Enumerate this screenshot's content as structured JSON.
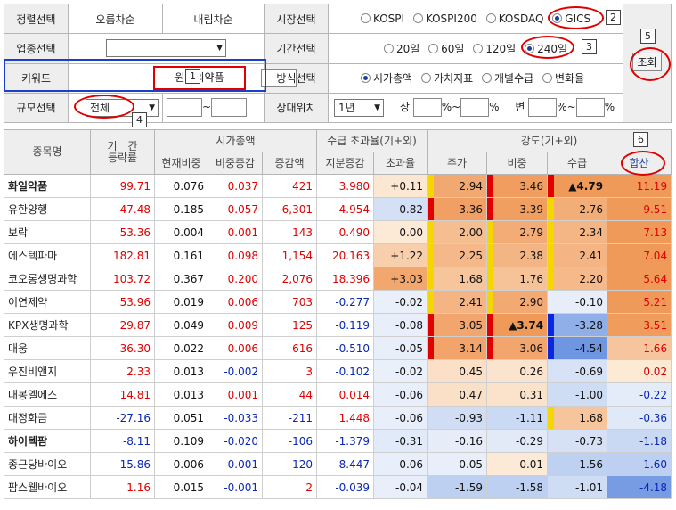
{
  "controls": {
    "sort_label": "정렬선택",
    "sort_asc": "오름차순",
    "sort_desc": "내림차순",
    "market_label": "시장선택",
    "market_options": [
      "KOSPI",
      "KOSPI200",
      "KOSDAQ",
      "GICS"
    ],
    "sector_label": "업종선택",
    "sector_value": "",
    "period_label": "기간선택",
    "period_options": [
      "20일",
      "60일",
      "120일",
      "240일"
    ],
    "keyword_label": "키워드",
    "keyword_value": "원료의약품",
    "method_label": "방식선택",
    "method_options": [
      "시가총액",
      "가치지표",
      "개별수급",
      "변화율"
    ],
    "scale_label": "규모선택",
    "scale_value": "전체",
    "tilde": "~",
    "relpos_label": "상대위치",
    "relpos_value": "1년",
    "up_label": "상",
    "pct1": "%~",
    "pct2": "%",
    "change_label": "변",
    "search_button": "조회"
  },
  "annotations": [
    "1",
    "2",
    "3",
    "4",
    "5",
    "6"
  ],
  "table": {
    "headers": {
      "name": "종목명",
      "period": "기　간\n등락률",
      "mcap": "시가총액",
      "mcap_cols": [
        "현재비중",
        "비중증감",
        "증감액"
      ],
      "supply": "수급 초과율(기+외)",
      "supply_cols": [
        "지분증감",
        "초과율"
      ],
      "strength": "강도(기+외)",
      "strength_cols": [
        "주가",
        "비중",
        "수급",
        "합산"
      ]
    },
    "rows": [
      {
        "name": "화일약품",
        "bold": true,
        "period": "99.71",
        "w": "0.076",
        "wchg": "0.037",
        "amt": "421",
        "stake": "3.980",
        "exc": "+0.11",
        "price": "2.94",
        "weight": "3.46",
        "supply": "▲4.79",
        "sum": "11.19"
      },
      {
        "name": "유한양행",
        "bold": false,
        "period": "47.48",
        "w": "0.185",
        "wchg": "0.057",
        "amt": "6,301",
        "stake": "4.954",
        "exc": "-0.82",
        "price": "3.36",
        "weight": "3.39",
        "supply": "2.76",
        "sum": "9.51"
      },
      {
        "name": "보락",
        "bold": false,
        "period": "53.36",
        "w": "0.004",
        "wchg": "0.001",
        "amt": "143",
        "stake": "0.490",
        "exc": "0.00",
        "price": "2.00",
        "weight": "2.79",
        "supply": "2.34",
        "sum": "7.13"
      },
      {
        "name": "에스텍파마",
        "bold": false,
        "period": "182.81",
        "w": "0.161",
        "wchg": "0.098",
        "amt": "1,154",
        "stake": "20.163",
        "exc": "+1.22",
        "price": "2.25",
        "weight": "2.38",
        "supply": "2.41",
        "sum": "7.04"
      },
      {
        "name": "코오롱생명과학",
        "bold": false,
        "period": "103.72",
        "w": "0.367",
        "wchg": "0.200",
        "amt": "2,076",
        "stake": "18.396",
        "exc": "+3.03",
        "price": "1.68",
        "weight": "1.76",
        "supply": "2.20",
        "sum": "5.64"
      },
      {
        "name": "이연제약",
        "bold": false,
        "period": "53.96",
        "w": "0.019",
        "wchg": "0.006",
        "amt": "703",
        "stake": "-0.277",
        "exc": "-0.02",
        "price": "2.41",
        "weight": "2.90",
        "supply": "-0.10",
        "sum": "5.21"
      },
      {
        "name": "KPX생명과학",
        "bold": false,
        "period": "29.87",
        "w": "0.049",
        "wchg": "0.009",
        "amt": "125",
        "stake": "-0.119",
        "exc": "-0.08",
        "price": "3.05",
        "weight": "▲3.74",
        "supply": "-3.28",
        "sum": "3.51"
      },
      {
        "name": "대웅",
        "bold": false,
        "period": "36.30",
        "w": "0.022",
        "wchg": "0.006",
        "amt": "616",
        "stake": "-0.510",
        "exc": "-0.05",
        "price": "3.14",
        "weight": "3.06",
        "supply": "-4.54",
        "sum": "1.66"
      },
      {
        "name": "우진비앤지",
        "bold": false,
        "period": "2.33",
        "w": "0.013",
        "wchg": "-0.002",
        "amt": "3",
        "stake": "-0.102",
        "exc": "-0.02",
        "price": "0.45",
        "weight": "0.26",
        "supply": "-0.69",
        "sum": "0.02"
      },
      {
        "name": "대봉엘에스",
        "bold": false,
        "period": "14.81",
        "w": "0.013",
        "wchg": "0.001",
        "amt": "44",
        "stake": "0.014",
        "exc": "-0.06",
        "price": "0.47",
        "weight": "0.31",
        "supply": "-1.00",
        "sum": "-0.22"
      },
      {
        "name": "대정화금",
        "bold": false,
        "period": "-27.16",
        "w": "0.051",
        "wchg": "-0.033",
        "amt": "-211",
        "stake": "1.448",
        "exc": "-0.06",
        "price": "-0.93",
        "weight": "-1.11",
        "supply": "1.68",
        "sum": "-0.36"
      },
      {
        "name": "하이텍팜",
        "bold": true,
        "period": "-8.11",
        "w": "0.109",
        "wchg": "-0.020",
        "amt": "-106",
        "stake": "-1.379",
        "exc": "-0.31",
        "price": "-0.16",
        "weight": "-0.29",
        "supply": "-0.73",
        "sum": "-1.18"
      },
      {
        "name": "종근당바이오",
        "bold": false,
        "period": "-15.86",
        "w": "0.006",
        "wchg": "-0.001",
        "amt": "-120",
        "stake": "-8.447",
        "exc": "-0.06",
        "price": "-0.05",
        "weight": "0.01",
        "supply": "-1.56",
        "sum": "-1.60"
      },
      {
        "name": "팜스웰바이오",
        "bold": false,
        "period": "1.16",
        "w": "0.015",
        "wchg": "-0.001",
        "amt": "2",
        "stake": "-0.039",
        "exc": "-0.04",
        "price": "-1.59",
        "weight": "-1.58",
        "supply": "-1.01",
        "sum": "-4.18"
      }
    ]
  }
}
